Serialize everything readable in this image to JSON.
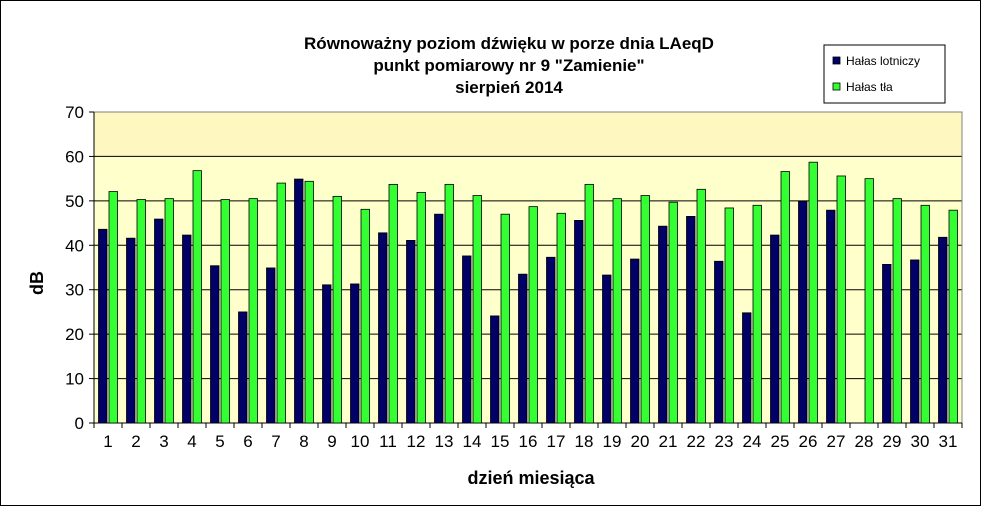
{
  "colors": {
    "background": "#ffffff",
    "plot_area": "#ffffcc",
    "plot_area_upper": "#fff7c0",
    "series_1": "#000066",
    "series_2": "#33ff33",
    "gridline": "#000000"
  },
  "chart_data": {
    "type": "bar",
    "title": [
      "Równoważny poziom dźwięku w porze dnia LAeqD",
      "punkt pomiarowy nr 9 \"Zamienie\"",
      "sierpień 2014"
    ],
    "xlabel": "dzień miesiąca",
    "ylabel": "dB",
    "ylim": [
      0,
      70
    ],
    "yticks": [
      0,
      10,
      20,
      30,
      40,
      50,
      60,
      70
    ],
    "grid": true,
    "legend_position": "top-right",
    "categories": [
      "1",
      "2",
      "3",
      "4",
      "5",
      "6",
      "7",
      "8",
      "9",
      "10",
      "11",
      "12",
      "13",
      "14",
      "15",
      "16",
      "17",
      "18",
      "19",
      "20",
      "21",
      "22",
      "23",
      "24",
      "25",
      "26",
      "27",
      "28",
      "29",
      "30",
      "31"
    ],
    "series": [
      {
        "name": "Hałas lotniczy",
        "color": "#000066",
        "values": [
          43.6,
          41.6,
          45.9,
          42.3,
          35.4,
          25.0,
          34.9,
          54.9,
          31.1,
          31.3,
          42.8,
          41.1,
          47.0,
          37.6,
          24.1,
          33.5,
          37.3,
          45.6,
          33.3,
          36.9,
          44.3,
          46.5,
          36.4,
          24.8,
          42.3,
          49.9,
          47.9,
          null,
          35.7,
          36.7,
          41.8
        ]
      },
      {
        "name": "Hałas tła",
        "color": "#33ff33",
        "values": [
          52.1,
          50.3,
          50.5,
          56.8,
          50.3,
          50.5,
          54.0,
          54.4,
          51.0,
          48.1,
          53.7,
          51.9,
          53.7,
          51.2,
          47.0,
          48.7,
          47.2,
          53.7,
          50.5,
          51.2,
          49.7,
          52.6,
          48.4,
          49.0,
          56.6,
          58.7,
          55.6,
          55.0,
          50.5,
          49.0,
          47.9
        ]
      }
    ]
  }
}
